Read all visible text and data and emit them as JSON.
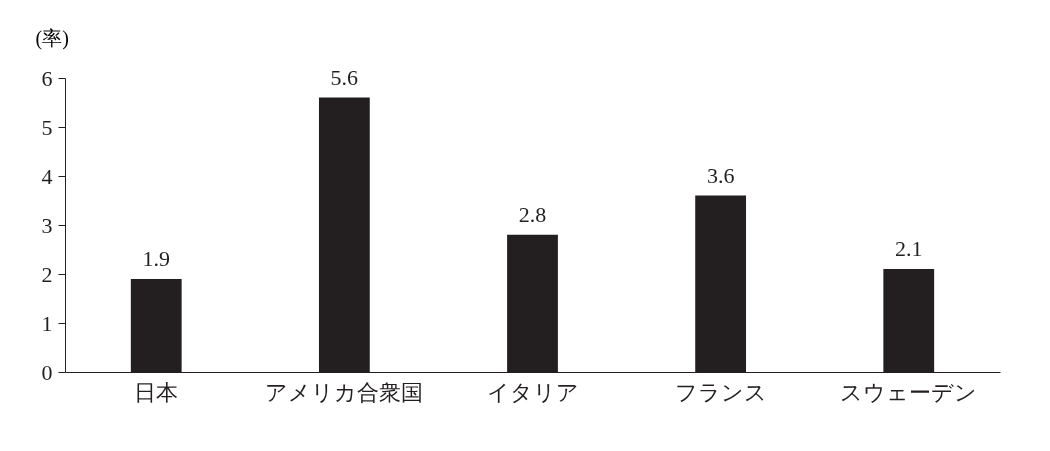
{
  "chart_data": {
    "type": "bar",
    "ylabel": "(率)",
    "categories": [
      "日本",
      "アメリカ合衆国",
      "イタリア",
      "フランス",
      "スウェーデン"
    ],
    "values": [
      1.9,
      5.6,
      2.8,
      3.6,
      2.1
    ],
    "color": "#231f20",
    "ylim": [
      0,
      6
    ],
    "yticks": [
      0,
      1,
      2,
      3,
      4,
      5,
      6
    ],
    "data_labels": true
  }
}
